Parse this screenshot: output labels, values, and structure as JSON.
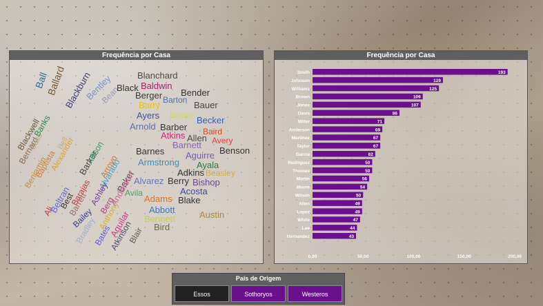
{
  "wordcloud": {
    "title": "Frequência por Casa",
    "words": [
      {
        "text": "Ball",
        "color": "#2c6e8f",
        "rot": -70
      },
      {
        "text": "Ballard",
        "color": "#6f5a2e",
        "rot": -70
      },
      {
        "text": "Blackburn",
        "color": "#3d3d7a",
        "rot": -60
      },
      {
        "text": "Bentley",
        "color": "#7b90c6",
        "rot": -45
      },
      {
        "text": "Bean",
        "color": "#9a9ab8",
        "rot": -45
      },
      {
        "text": "Black",
        "color": "#333333",
        "rot": 0
      },
      {
        "text": "Blanchard",
        "color": "#4a4a4a",
        "rot": 0
      },
      {
        "text": "Baldwin",
        "color": "#a01e6b",
        "rot": 0
      },
      {
        "text": "Berger",
        "color": "#3a3a3a",
        "rot": 0
      },
      {
        "text": "Barton",
        "color": "#4a72b0",
        "rot": 0
      },
      {
        "text": "Bender",
        "color": "#333333",
        "rot": 0
      },
      {
        "text": "Barry",
        "color": "#e0c020",
        "rot": 0
      },
      {
        "text": "Bauer",
        "color": "#444444",
        "rot": 0
      },
      {
        "text": "Ayers",
        "color": "#3f4fa0",
        "rot": 0
      },
      {
        "text": "Baxter",
        "color": "#c8e04a",
        "rot": 0
      },
      {
        "text": "Becker",
        "color": "#3b5fae",
        "rot": 0
      },
      {
        "text": "Arnold",
        "color": "#5a6fb0",
        "rot": 0
      },
      {
        "text": "Barber",
        "color": "#333333",
        "rot": 0
      },
      {
        "text": "Baird",
        "color": "#d04a1a",
        "rot": 0
      },
      {
        "text": "Atkins",
        "color": "#c8287a",
        "rot": 0
      },
      {
        "text": "Allen",
        "color": "#4a4a4a",
        "rot": 0
      },
      {
        "text": "Avery",
        "color": "#e04040",
        "rot": 0
      },
      {
        "text": "Barnett",
        "color": "#8a6ab0",
        "rot": 0
      },
      {
        "text": "Benson",
        "color": "#333333",
        "rot": 0
      },
      {
        "text": "Barnes",
        "color": "#333333",
        "rot": 0
      },
      {
        "text": "Aguirre",
        "color": "#7a5ab8",
        "rot": 0
      },
      {
        "text": "Armstrong",
        "color": "#3a8fb8",
        "rot": 0
      },
      {
        "text": "Ayala",
        "color": "#2a7a3a",
        "rot": 0
      },
      {
        "text": "Adkins",
        "color": "#333333",
        "rot": 0
      },
      {
        "text": "Beasley",
        "color": "#d0b040",
        "rot": 0
      },
      {
        "text": "Alvarez",
        "color": "#5a78c0",
        "rot": 0
      },
      {
        "text": "Berry",
        "color": "#333333",
        "rot": 0
      },
      {
        "text": "Bishop",
        "color": "#6a4a8a",
        "rot": 0
      },
      {
        "text": "Acosta",
        "color": "#3a4aa0",
        "rot": 0
      },
      {
        "text": "Avila",
        "color": "#4aa05a",
        "rot": 0
      },
      {
        "text": "Blake",
        "color": "#333333",
        "rot": 0
      },
      {
        "text": "Adams",
        "color": "#e07020",
        "rot": 0
      },
      {
        "text": "Abbott",
        "color": "#3a78c0",
        "rot": 0
      },
      {
        "text": "Bennett",
        "color": "#c8d040",
        "rot": 0
      },
      {
        "text": "Austin",
        "color": "#b08a30",
        "rot": 0
      },
      {
        "text": "Bird",
        "color": "#6a6a4a",
        "rot": 0
      },
      {
        "text": "Blackwell",
        "color": "#6a5a3a",
        "rot": -60
      },
      {
        "text": "Banks",
        "color": "#2a8a4a",
        "rot": -60
      },
      {
        "text": "Bernard",
        "color": "#8a6a4a",
        "rot": -60
      },
      {
        "text": "Bass",
        "color": "#b0a080",
        "rot": -60
      },
      {
        "text": "Bailey",
        "color": "#3a3a9a",
        "rot": -45
      },
      {
        "text": "Benjamin",
        "color": "#c09040",
        "rot": -60
      },
      {
        "text": "Baptista",
        "color": "#d08040",
        "rot": -60
      },
      {
        "text": "Alexander",
        "color": "#e0a030",
        "rot": -60
      },
      {
        "text": "Bell",
        "color": "#c8b070",
        "rot": -60
      },
      {
        "text": "Barker",
        "color": "#4a4a4a",
        "rot": -60
      },
      {
        "text": "Allison",
        "color": "#2a9a6a",
        "rot": -60
      },
      {
        "text": "Arroyo",
        "color": "#d0702a",
        "rot": -60
      },
      {
        "text": "Alvarado",
        "color": "#40a0d0",
        "rot": -60
      },
      {
        "text": "Ali",
        "color": "#c03050",
        "rot": -60
      },
      {
        "text": "Beltran",
        "color": "#6a6ad0",
        "rot": -60
      },
      {
        "text": "Best",
        "color": "#333333",
        "rot": -60
      },
      {
        "text": "Barajas",
        "color": "#c04040",
        "rot": -60
      },
      {
        "text": "Barrett",
        "color": "#a06a6a",
        "rot": -60
      },
      {
        "text": "Ashley",
        "color": "#6a3a9a",
        "rot": -60
      },
      {
        "text": "Berg",
        "color": "#a04a7a",
        "rot": -60
      },
      {
        "text": "Baker",
        "color": "#4a4a4a",
        "rot": -60
      },
      {
        "text": "Anthony",
        "color": "#d0b030",
        "rot": -60
      },
      {
        "text": "Bates",
        "color": "#5a5ad0",
        "rot": -60
      },
      {
        "text": "Aguilar",
        "color": "#c83a8a",
        "rot": -60
      },
      {
        "text": "Atkinson",
        "color": "#4a4a6a",
        "rot": -60
      },
      {
        "text": "Blair",
        "color": "#5a5a5a",
        "rot": -60
      },
      {
        "text": "Anderson",
        "color": "#d06a9a",
        "rot": -60
      },
      {
        "text": "Bradley",
        "color": "#9ab0d8",
        "rot": -60
      }
    ]
  },
  "bar_panel": {
    "title": "Frequência por Casa"
  },
  "chart_data": {
    "type": "bar",
    "orientation": "horizontal",
    "categories": [
      "Smith",
      "Johnson",
      "Williams",
      "Brown",
      "Jones",
      "Davis",
      "Miller",
      "Anderson",
      "Martinez",
      "Taylor",
      "Garcia",
      "Rodriguez",
      "Thomas",
      "Martin",
      "Moore",
      "Wilson",
      "Allen",
      "Lopez",
      "White",
      "Lee",
      "Hernandez"
    ],
    "values": [
      193,
      129,
      125,
      109,
      107,
      86,
      71,
      69,
      67,
      67,
      62,
      59,
      59,
      56,
      54,
      50,
      49,
      49,
      47,
      44,
      43
    ],
    "xlim": [
      0,
      200
    ],
    "xticks": [
      "0,00",
      "50,00",
      "100,00",
      "150,00",
      "200,00"
    ],
    "bar_color": "#6a0f8e",
    "grid": false,
    "title": "Frequência por Casa"
  },
  "slicer": {
    "title": "País de Origem",
    "options": [
      {
        "label": "Essos",
        "selected": false,
        "color": "#222222"
      },
      {
        "label": "Sothoryos",
        "selected": true,
        "color": "#6a0f8e"
      },
      {
        "label": "Westeros",
        "selected": true,
        "color": "#6a0f8e"
      }
    ]
  }
}
